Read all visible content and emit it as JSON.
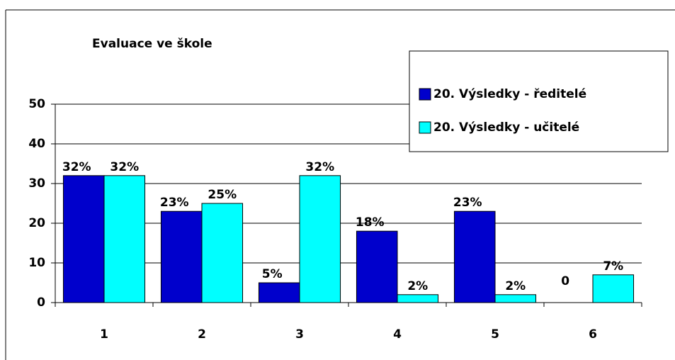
{
  "chart_data": {
    "type": "bar",
    "title": "Evaluace ve škole",
    "categories": [
      "1",
      "2",
      "3",
      "4",
      "5",
      "6"
    ],
    "series": [
      {
        "name": "20. Výsledky - ředitelé",
        "color": "#0000cc",
        "values": [
          32,
          23,
          5,
          18,
          23,
          0
        ],
        "value_labels": [
          "32%",
          "23%",
          "5%",
          "18%",
          "23%",
          "0"
        ]
      },
      {
        "name": "20. Výsledky - učitelé",
        "color": "#00ffff",
        "values": [
          32,
          25,
          32,
          2,
          2,
          7
        ],
        "value_labels": [
          "32%",
          "25%",
          "32%",
          "2%",
          "2%",
          "7%"
        ]
      }
    ],
    "ylim": [
      0,
      50
    ],
    "yticks": [
      0,
      10,
      20,
      30,
      40,
      50
    ],
    "grid": true,
    "legend": "top-right"
  }
}
